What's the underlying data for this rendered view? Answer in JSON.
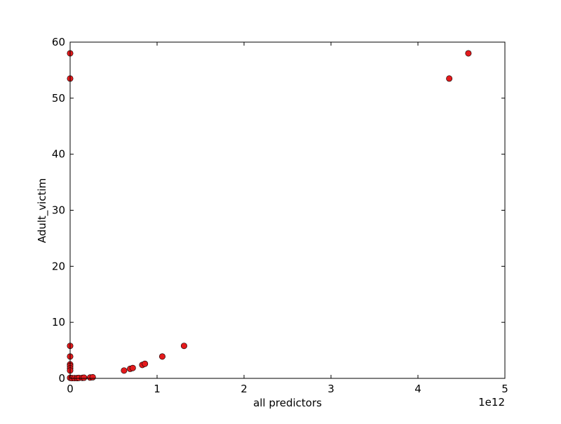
{
  "chart_data": {
    "type": "scatter",
    "title": "",
    "xlabel": "all predictors",
    "ylabel": "Adult_victim",
    "x_offset_label": "1e12",
    "xlim": [
      0,
      5
    ],
    "ylim": [
      0,
      60
    ],
    "x_ticks": [
      0,
      1,
      2,
      3,
      4,
      5
    ],
    "y_ticks": [
      0,
      10,
      20,
      30,
      40,
      50,
      60
    ],
    "x_tick_labels": [
      "0",
      "1",
      "2",
      "3",
      "4",
      "5"
    ],
    "y_tick_labels": [
      "0",
      "10",
      "20",
      "30",
      "40",
      "50",
      "60"
    ],
    "grid": false,
    "legend": "none",
    "marker_color": "#e31a1c",
    "marker_edge_color": "#000000",
    "series": [
      {
        "points": [
          [
            0.0,
            58.0
          ],
          [
            0.0,
            53.5
          ],
          [
            0.0,
            5.8
          ],
          [
            0.0,
            3.9
          ],
          [
            0.0,
            2.5
          ],
          [
            0.0,
            2.2
          ],
          [
            0.0,
            1.8
          ],
          [
            0.0,
            1.4
          ],
          [
            0.0,
            0.1
          ],
          [
            0.02,
            0.05
          ],
          [
            0.05,
            0.05
          ],
          [
            0.08,
            0.05
          ],
          [
            0.1,
            0.08
          ],
          [
            0.14,
            0.1
          ],
          [
            0.16,
            0.12
          ],
          [
            0.23,
            0.15
          ],
          [
            0.26,
            0.2
          ],
          [
            0.62,
            1.4
          ],
          [
            0.69,
            1.7
          ],
          [
            0.72,
            1.85
          ],
          [
            0.83,
            2.4
          ],
          [
            0.86,
            2.6
          ],
          [
            1.06,
            3.9
          ],
          [
            1.31,
            5.8
          ],
          [
            4.36,
            53.5
          ],
          [
            4.58,
            58.0
          ]
        ]
      }
    ]
  }
}
